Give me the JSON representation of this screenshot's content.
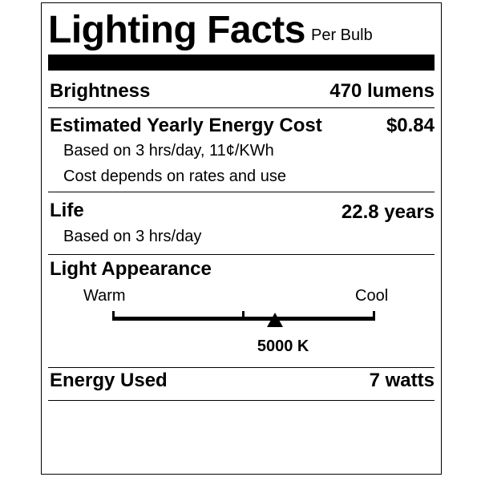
{
  "label": {
    "title": "Lighting Facts",
    "subtitle": "Per Bulb",
    "brightness": {
      "label": "Brightness",
      "value": "470 lumens"
    },
    "energy_cost": {
      "label": "Estimated Yearly Energy Cost",
      "value": "$0.84",
      "notes": [
        "Based on 3 hrs/day, 11¢/KWh",
        "Cost depends on rates and use"
      ]
    },
    "life": {
      "label": "Life",
      "value": "22.8 years",
      "note": "Based on 3 hrs/day"
    },
    "light_appearance": {
      "label": "Light Appearance",
      "warm_label": "Warm",
      "cool_label": "Cool",
      "value": "5000 K",
      "marker_fraction": 0.62
    },
    "energy_used": {
      "label": "Energy Used",
      "value": "7 watts"
    }
  }
}
